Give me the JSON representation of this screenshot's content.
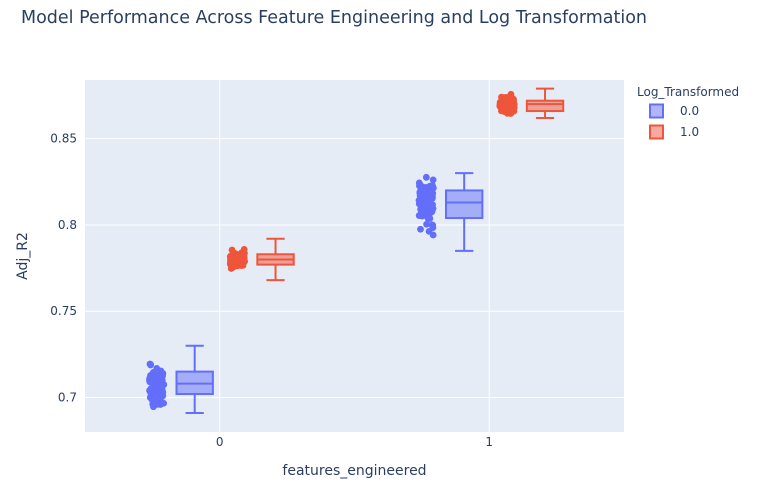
{
  "chart_data": {
    "type": "box",
    "title": "Model Performance Across Feature Engineering and Log Transformation",
    "xlabel": "features_engineered",
    "ylabel": "Adj_R2",
    "categories": [
      "0",
      "1"
    ],
    "y_ticks": [
      "0.7",
      "0.75",
      "0.8",
      "0.85"
    ],
    "ylim": [
      0.68,
      0.884
    ],
    "grid": true,
    "legend": {
      "title": "Log_Transformed",
      "placement": "top-right",
      "entries": [
        "0.0",
        "1.0"
      ]
    },
    "series": [
      {
        "name": "0.0",
        "color": "#636efa",
        "boxes": [
          {
            "category": "0",
            "min": 0.691,
            "q1": 0.702,
            "median": 0.708,
            "q3": 0.715,
            "max": 0.73
          },
          {
            "category": "1",
            "min": 0.785,
            "q1": 0.804,
            "median": 0.813,
            "q3": 0.82,
            "max": 0.83
          }
        ]
      },
      {
        "name": "1.0",
        "color": "#ef553b",
        "boxes": [
          {
            "category": "0",
            "min": 0.768,
            "q1": 0.777,
            "median": 0.78,
            "q3": 0.783,
            "max": 0.792
          },
          {
            "category": "1",
            "min": 0.862,
            "q1": 0.866,
            "median": 0.87,
            "q3": 0.872,
            "max": 0.879
          }
        ]
      }
    ],
    "background": "#e5ecf6",
    "text_color": "#2a3f5f"
  }
}
